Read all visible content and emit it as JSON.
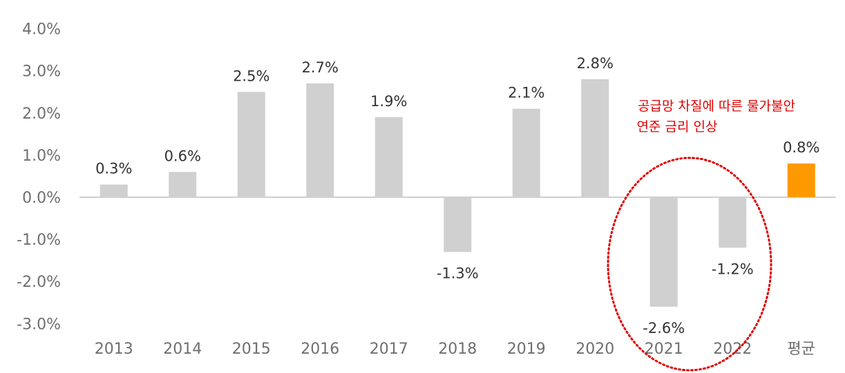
{
  "chart_data": {
    "type": "bar",
    "title": "",
    "xlabel": "",
    "ylabel": "",
    "categories": [
      "2013",
      "2014",
      "2015",
      "2016",
      "2017",
      "2018",
      "2019",
      "2020",
      "2021",
      "2022",
      "평균"
    ],
    "values": [
      0.3,
      0.6,
      2.5,
      2.7,
      1.9,
      -1.3,
      2.1,
      2.8,
      -2.6,
      -1.2,
      0.8
    ],
    "data_labels": [
      "0.3%",
      "0.6%",
      "2.5%",
      "2.7%",
      "1.9%",
      "-1.3%",
      "2.1%",
      "2.8%",
      "-2.6%",
      "-1.2%",
      "0.8%"
    ],
    "y_ticks": [
      "4.0%",
      "3.0%",
      "2.0%",
      "1.0%",
      "0.0%",
      "-1.0%",
      "-2.0%",
      "-3.0%"
    ],
    "y_tick_values": [
      4,
      3,
      2,
      1,
      0,
      -1,
      -2,
      -3
    ],
    "ylim": [
      -3,
      4
    ],
    "grid": false,
    "legend": "none",
    "colors": {
      "bar": "#d0d0d0",
      "highlight": "#ff9900",
      "highlight_index": 10,
      "annotation": "#e00000",
      "axis": "#bfbfbf"
    },
    "annotation": {
      "lines": [
        "공급망 차질에 따른 물가불안",
        "연준 금리 인상"
      ],
      "highlighted_categories": [
        "2021",
        "2022"
      ]
    }
  }
}
